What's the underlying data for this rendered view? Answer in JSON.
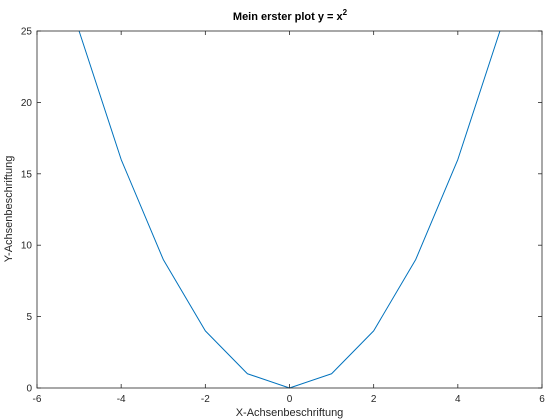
{
  "chart_data": {
    "type": "line",
    "title": "Mein erster plot y = x",
    "title_superscript": "2",
    "xlabel": "X-Achsenbeschriftung",
    "ylabel": "Y-Achsenbeschriftung",
    "xlim": [
      -6,
      6
    ],
    "ylim": [
      0,
      25
    ],
    "xticks": [
      -6,
      -4,
      -2,
      0,
      2,
      4,
      6
    ],
    "xtick_labels": [
      "-6",
      "-4",
      "-2",
      "0",
      "2",
      "4",
      "6"
    ],
    "yticks": [
      0,
      5,
      10,
      15,
      20,
      25
    ],
    "ytick_labels": [
      "0",
      "5",
      "10",
      "15",
      "20",
      "25"
    ],
    "grid": false,
    "series": [
      {
        "x": [
          -5,
          -4,
          -3,
          -2,
          -1,
          0,
          1,
          2,
          3,
          4,
          5
        ],
        "y": [
          25,
          16,
          9,
          4,
          1,
          0,
          1,
          4,
          9,
          16,
          25
        ],
        "color": "#0072bd"
      }
    ]
  }
}
